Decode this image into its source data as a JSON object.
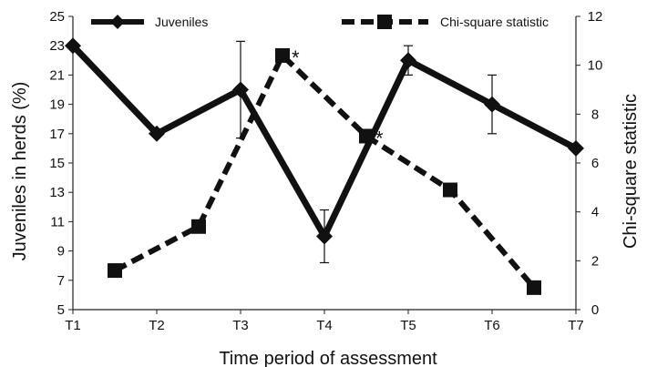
{
  "chart_data": {
    "type": "line",
    "categories": [
      "T1",
      "T2",
      "T3",
      "T4",
      "T5",
      "T6",
      "T7"
    ],
    "xlabel": "Time period of assessment",
    "ylabel_left": "Juveniles in herds (%)",
    "ylabel_right": "Chi-square statistic",
    "ylim_left": [
      5,
      25
    ],
    "yticks_left": [
      5,
      7,
      9,
      11,
      13,
      15,
      17,
      19,
      21,
      23,
      25
    ],
    "ylim_right": [
      0,
      12
    ],
    "yticks_right": [
      0,
      2,
      4,
      6,
      8,
      10,
      12
    ],
    "grid": false,
    "legend_position": "top",
    "series": [
      {
        "name": "Juveniles",
        "axis": "left",
        "style": "solid",
        "marker": "diamond",
        "color": "#111111",
        "x": [
          "T1",
          "T2",
          "T3",
          "T4",
          "T5",
          "T6",
          "T7"
        ],
        "values": [
          23,
          17,
          20,
          10,
          22,
          19,
          16
        ],
        "error": [
          null,
          null,
          3.3,
          1.8,
          1.0,
          2.0,
          null
        ]
      },
      {
        "name": "Chi-square statistic",
        "axis": "right",
        "style": "dashed",
        "marker": "square",
        "color": "#111111",
        "x": [
          1.5,
          2.5,
          3.5,
          4.5,
          5.5,
          6.5
        ],
        "values": [
          1.6,
          3.4,
          10.4,
          7.1,
          4.9,
          0.9
        ],
        "significant": [
          false,
          false,
          true,
          true,
          false,
          false
        ]
      }
    ],
    "annotations": [
      "*",
      "*"
    ]
  }
}
